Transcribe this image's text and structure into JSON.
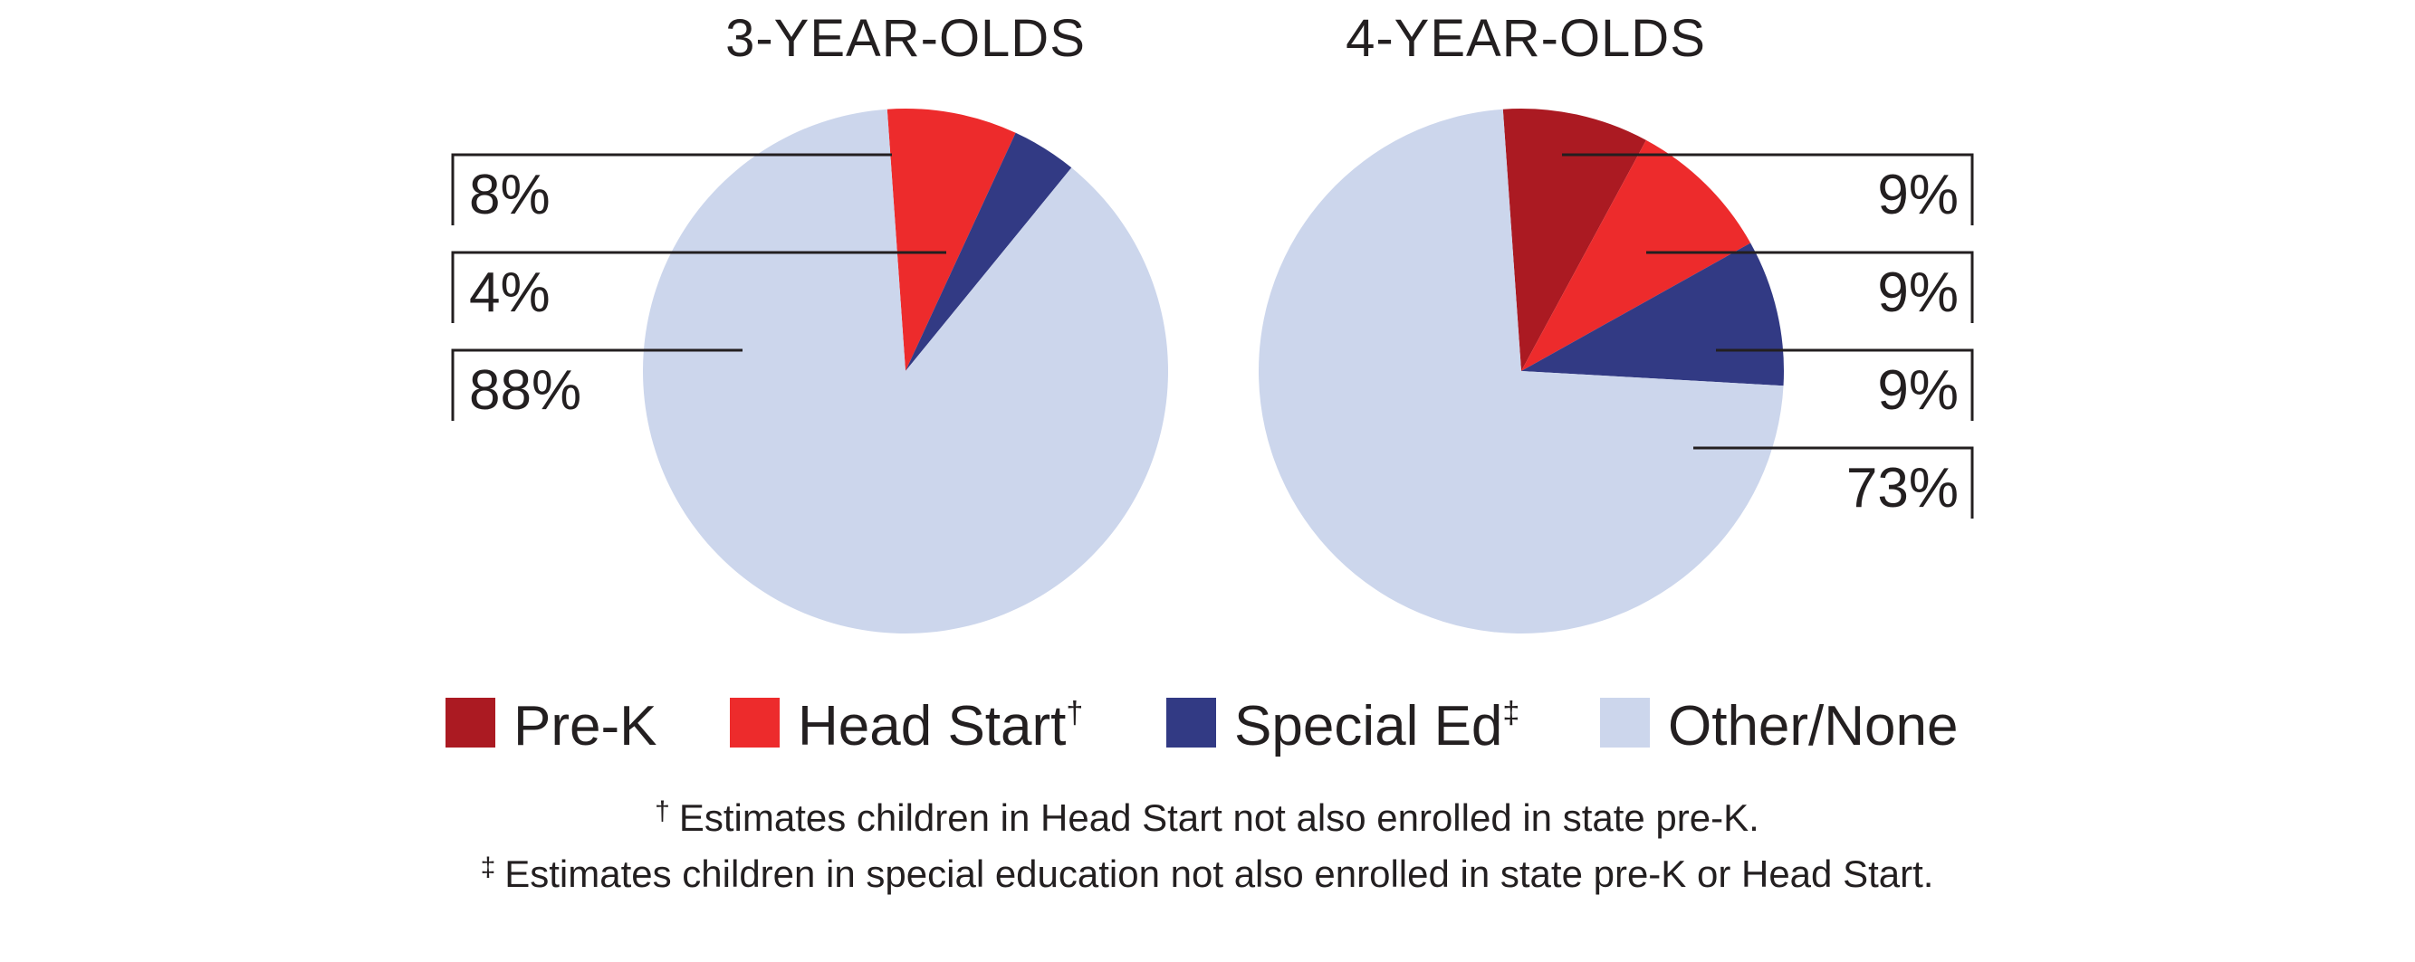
{
  "chart_data": [
    {
      "type": "pie",
      "title": "3-YEAR-OLDS",
      "categories": [
        "Pre-K",
        "Head Start",
        "Special Ed",
        "Other/None"
      ],
      "values": [
        0,
        8,
        4,
        88
      ],
      "labels": [
        {
          "category": "Head Start",
          "text": "8%"
        },
        {
          "category": "Special Ed",
          "text": "4%"
        },
        {
          "category": "Other/None",
          "text": "88%"
        }
      ],
      "label_side": "left"
    },
    {
      "type": "pie",
      "title": "4-YEAR-OLDS",
      "categories": [
        "Pre-K",
        "Head Start",
        "Special Ed",
        "Other/None"
      ],
      "values": [
        9,
        9,
        9,
        73
      ],
      "labels": [
        {
          "category": "Pre-K",
          "text": "9%"
        },
        {
          "category": "Head Start",
          "text": "9%"
        },
        {
          "category": "Special Ed",
          "text": "9%"
        },
        {
          "category": "Other/None",
          "text": "73%"
        }
      ],
      "label_side": "right"
    }
  ],
  "legend": {
    "placement": "bottom",
    "items": [
      {
        "label": "Pre-K",
        "sup": "",
        "color": "#ab1a22"
      },
      {
        "label": "Head Start",
        "sup": "†",
        "color": "#ed2b2c"
      },
      {
        "label": "Special Ed",
        "sup": "‡",
        "color": "#323a84"
      },
      {
        "label": "Other/None",
        "sup": "",
        "color": "#ccd6ec"
      }
    ]
  },
  "footnotes": [
    {
      "mark": "†",
      "text": "Estimates children in Head Start not also enrolled in state pre-K."
    },
    {
      "mark": "‡",
      "text": "Estimates children in special education not also enrolled in state pre-K or Head Start."
    }
  ]
}
